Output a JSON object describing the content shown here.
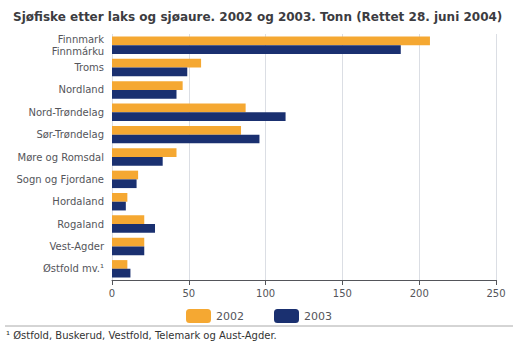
{
  "chart_data": {
    "type": "bar",
    "orientation": "horizontal",
    "title": "Sjøfiske etter laks og sjøaure. 2002 og 2003. Tonn (Rettet 28. juni 2004)",
    "categories": [
      "Finnmark\nFinnmárku",
      "Troms",
      "Nordland",
      "Nord-Trøndelag",
      "Sør-Trøndelag",
      "Møre og Romsdal",
      "Sogn og Fjordane",
      "Hordaland",
      "Rogaland",
      "Vest-Agder",
      "Østfold mv.¹"
    ],
    "series": [
      {
        "name": "2002",
        "color": "#f5a832",
        "values": [
          207,
          58,
          46,
          87,
          84,
          42,
          17,
          10,
          21,
          21,
          10
        ]
      },
      {
        "name": "2003",
        "color": "#1a3070",
        "values": [
          188,
          49,
          42,
          113,
          96,
          33,
          16,
          9,
          28,
          21,
          12
        ]
      }
    ],
    "xlim": [
      0,
      250
    ],
    "xticks": [
      0,
      50,
      100,
      150,
      200,
      250
    ],
    "grid": true,
    "legend": "bottom",
    "annotations": [
      "¹ Østfold, Buskerud, Vestfold, Telemark og Aust-Agder."
    ]
  }
}
